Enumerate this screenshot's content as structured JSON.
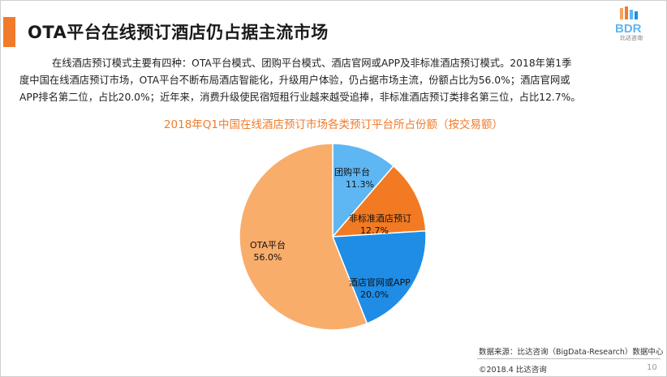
{
  "header": {
    "title": "OTA平台在线预订酒店仍占据主流市场",
    "logo_text": "BDR",
    "logo_subtext": "比达咨询"
  },
  "body_text": [
    "在线酒店预订模式主要有四种：OTA平台模式、团购平台模式、酒店官网或APP及非标准酒店预订模式。2018年第1季",
    "度中国在线酒店预订市场，OTA平台不断布局酒店智能化，升级用户体验，仍占据市场主流，份额占比为56.0%；酒店官网或",
    "APP排名第二位，占比20.0%；近年来，消费升级使民宿短租行业越来越受追捧，非标准酒店预订类排名第三位，占比12.7%。"
  ],
  "chart_data": {
    "type": "pie",
    "title": "2018年Q1中国在线酒店预订市场各类预订平台所占份额（按交易额）",
    "slices": [
      {
        "label": "团购平台",
        "value": 11.3,
        "display": "11.3%",
        "color": "#5eb6f2"
      },
      {
        "label": "非标准酒店预订",
        "value": 12.7,
        "display": "12.7%",
        "color": "#f27a22"
      },
      {
        "label": "酒店官网或APP",
        "value": 20.0,
        "display": "20.0%",
        "color": "#1f8de6"
      },
      {
        "label": "OTA平台",
        "value": 56.0,
        "display": "56.0%",
        "color": "#f9ad6b"
      }
    ]
  },
  "footer": {
    "source": "数据来源：比达咨询（BigData-Research）数据中心",
    "copyright": "©2018.4 比达咨询",
    "page_number": "10"
  }
}
